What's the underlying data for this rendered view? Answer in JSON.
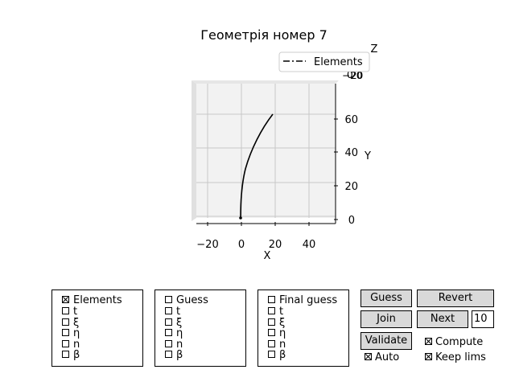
{
  "window": {
    "title": "Геометрія номер 7"
  },
  "plot": {
    "axis_x_label": "X",
    "axis_y_label": "Y",
    "axis_z_label": "Z",
    "x_ticks": [
      "−20",
      "0",
      "20",
      "40"
    ],
    "y_ticks": [
      "0",
      "20",
      "40",
      "60"
    ],
    "z_ticks_overlap": [
      "−20",
      "0",
      "20"
    ],
    "legend_label": "Elements",
    "line_color": "#000000"
  },
  "panels": [
    {
      "items": [
        {
          "label": "Elements",
          "checked": true
        },
        {
          "label": "t",
          "checked": false
        },
        {
          "label": "ξ",
          "checked": false
        },
        {
          "label": "η",
          "checked": false
        },
        {
          "label": "n",
          "checked": false
        },
        {
          "label": "β",
          "checked": false
        }
      ]
    },
    {
      "items": [
        {
          "label": "Guess",
          "checked": false
        },
        {
          "label": "t",
          "checked": false
        },
        {
          "label": "ξ",
          "checked": false
        },
        {
          "label": "η",
          "checked": false
        },
        {
          "label": "n",
          "checked": false
        },
        {
          "label": "β",
          "checked": false
        }
      ]
    },
    {
      "items": [
        {
          "label": "Final guess",
          "checked": false
        },
        {
          "label": "t",
          "checked": false
        },
        {
          "label": "ξ",
          "checked": false
        },
        {
          "label": "η",
          "checked": false
        },
        {
          "label": "n",
          "checked": false
        },
        {
          "label": "β",
          "checked": false
        }
      ]
    }
  ],
  "controls": {
    "guess_label": "Guess",
    "revert_label": "Revert",
    "join_label": "Join",
    "next_label": "Next",
    "next_count": "10",
    "validate_label": "Validate",
    "compute_label": "Compute",
    "compute_checked": true,
    "keep_lims_label": "Keep lims",
    "keep_lims_checked": true,
    "auto_label": "Auto",
    "auto_checked": true
  }
}
